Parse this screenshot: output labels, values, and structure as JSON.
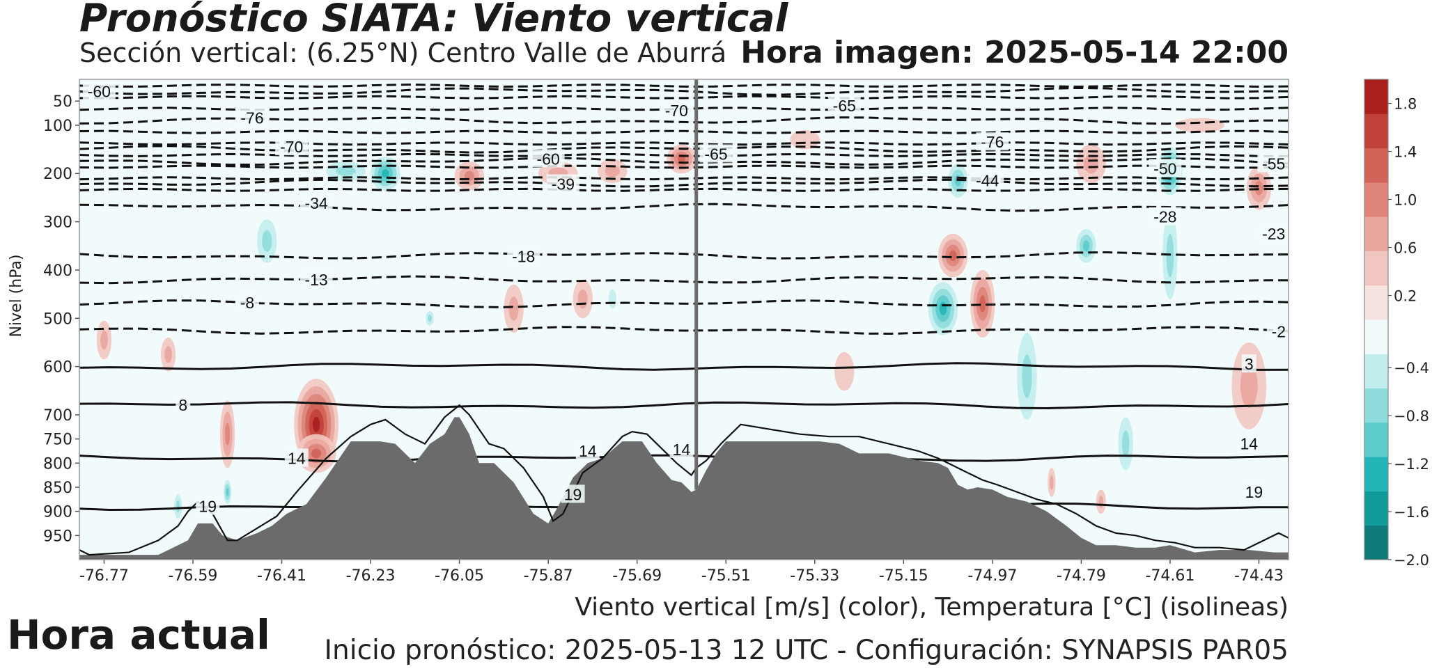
{
  "header": {
    "title": "Pronóstico SIATA: Viento vertical",
    "subtitle": "Sección vertical: (6.25°N) Centro Valle de Aburrá",
    "image_time": "Hora imagen: 2025-05-14 22:00"
  },
  "footer": {
    "xlabel": "Viento vertical [m/s] (color), Temperatura [°C] (isolineas)",
    "init": "Inicio pronóstico: 2025-05-13 12 UTC - Configuración: SYNAPSIS PAR05",
    "current_label": "Hora actual"
  },
  "chart_data": {
    "type": "heatmap",
    "ylabel": "Nivel (hPa)",
    "xlim": [
      -76.82,
      -74.37
    ],
    "ylim": [
      1000,
      5
    ],
    "x_ticks": [
      -76.77,
      -76.59,
      -76.41,
      -76.23,
      -76.05,
      -75.87,
      -75.69,
      -75.51,
      -75.33,
      -75.15,
      -74.97,
      -74.79,
      -74.61,
      -74.43
    ],
    "y_ticks": [
      50,
      100,
      200,
      300,
      400,
      500,
      600,
      700,
      750,
      800,
      850,
      900,
      950
    ],
    "current_longitude": -75.57,
    "colorbar": {
      "ticks": [
        1.8,
        1.4,
        1.0,
        0.6,
        0.2,
        -0.4,
        -0.8,
        -1.2,
        -1.6,
        -2.0
      ],
      "range": [
        -2.0,
        2.0
      ],
      "colors": [
        "#0e7b7b",
        "#109b9b",
        "#23b5b5",
        "#5ccbcb",
        "#8fdcdc",
        "#c2eded",
        "#f2fbfb",
        "#f7e3e0",
        "#f2c6c0",
        "#e9a69e",
        "#de847a",
        "#d16358",
        "#c0403a",
        "#aa1e1e"
      ]
    },
    "isotherms": [
      {
        "level": 30,
        "value": -60,
        "style": "dashed"
      },
      {
        "level": 90,
        "value": -76,
        "style": "dashed"
      },
      {
        "level": 150,
        "value": -70,
        "style": "dashed"
      },
      {
        "level": 175,
        "value": -60,
        "style": "dashed"
      },
      {
        "level": 220,
        "value": -39,
        "style": "dashed"
      },
      {
        "level": 270,
        "value": -34,
        "style": "dashed"
      },
      {
        "level": 370,
        "value": -18,
        "style": "dashed"
      },
      {
        "level": 420,
        "value": -13,
        "style": "dashed"
      },
      {
        "level": 470,
        "value": -8,
        "style": "dashed"
      },
      {
        "level": 525,
        "value": -2,
        "style": "dashed"
      },
      {
        "level": 600,
        "value": 3,
        "style": "solid"
      },
      {
        "level": 680,
        "value": 8,
        "style": "solid"
      },
      {
        "level": 790,
        "value": 14,
        "style": "solid"
      },
      {
        "level": 890,
        "value": 19,
        "style": "solid"
      }
    ],
    "isotherm_labels": [
      {
        "x": -76.78,
        "level": 30,
        "text": "-60"
      },
      {
        "x": -76.47,
        "level": 85,
        "text": "-76"
      },
      {
        "x": -76.39,
        "level": 145,
        "text": "-70"
      },
      {
        "x": -75.61,
        "level": 70,
        "text": "-70"
      },
      {
        "x": -75.87,
        "level": 170,
        "text": "-60"
      },
      {
        "x": -75.27,
        "level": 60,
        "text": "-65"
      },
      {
        "x": -75.53,
        "level": 160,
        "text": "-65"
      },
      {
        "x": -74.97,
        "level": 135,
        "text": "-76"
      },
      {
        "x": -74.62,
        "level": 190,
        "text": "-50"
      },
      {
        "x": -74.4,
        "level": 180,
        "text": "-55"
      },
      {
        "x": -75.84,
        "level": 222,
        "text": "-39"
      },
      {
        "x": -76.34,
        "level": 262,
        "text": "-34"
      },
      {
        "x": -74.98,
        "level": 215,
        "text": "-44"
      },
      {
        "x": -74.62,
        "level": 290,
        "text": "-28"
      },
      {
        "x": -74.4,
        "level": 325,
        "text": "-23"
      },
      {
        "x": -75.92,
        "level": 372,
        "text": "-18"
      },
      {
        "x": -76.34,
        "level": 420,
        "text": "-13"
      },
      {
        "x": -76.48,
        "level": 468,
        "text": "-8"
      },
      {
        "x": -74.39,
        "level": 528,
        "text": "-2"
      },
      {
        "x": -74.45,
        "level": 595,
        "text": "3"
      },
      {
        "x": -76.61,
        "level": 680,
        "text": "8"
      },
      {
        "x": -76.38,
        "level": 790,
        "text": "14"
      },
      {
        "x": -75.79,
        "level": 775,
        "text": "14"
      },
      {
        "x": -75.6,
        "level": 772,
        "text": "14"
      },
      {
        "x": -74.45,
        "level": 760,
        "text": "14"
      },
      {
        "x": -76.56,
        "level": 890,
        "text": "19"
      },
      {
        "x": -75.82,
        "level": 865,
        "text": "19"
      },
      {
        "x": -74.44,
        "level": 860,
        "text": "19"
      }
    ],
    "terrain": {
      "x": [
        -76.82,
        -76.74,
        -76.66,
        -76.6,
        -76.58,
        -76.55,
        -76.53,
        -76.5,
        -76.46,
        -76.43,
        -76.4,
        -76.36,
        -76.32,
        -76.27,
        -76.25,
        -76.21,
        -76.18,
        -76.14,
        -76.11,
        -76.08,
        -76.06,
        -76.05,
        -76.03,
        -76.01,
        -75.98,
        -75.94,
        -75.9,
        -75.87,
        -75.85,
        -75.82,
        -75.79,
        -75.76,
        -75.72,
        -75.7,
        -75.68,
        -75.65,
        -75.62,
        -75.6,
        -75.58,
        -75.57,
        -75.55,
        -75.53,
        -75.51,
        -75.48,
        -75.44,
        -75.4,
        -75.36,
        -75.32,
        -75.28,
        -75.24,
        -75.18,
        -75.12,
        -75.08,
        -75.06,
        -75.04,
        -75.02,
        -75.0,
        -74.97,
        -74.94,
        -74.9,
        -74.86,
        -74.82,
        -74.79,
        -74.76,
        -74.72,
        -74.68,
        -74.64,
        -74.61,
        -74.56,
        -74.51,
        -74.45,
        -74.4,
        -74.37
      ],
      "level": [
        990,
        990,
        990,
        960,
        925,
        925,
        950,
        960,
        945,
        930,
        905,
        885,
        830,
        755,
        755,
        755,
        760,
        800,
        760,
        740,
        705,
        705,
        740,
        800,
        800,
        840,
        905,
        925,
        890,
        830,
        800,
        790,
        755,
        755,
        755,
        800,
        835,
        840,
        860,
        855,
        815,
        780,
        755,
        755,
        755,
        755,
        755,
        755,
        760,
        780,
        780,
        795,
        800,
        810,
        845,
        855,
        850,
        855,
        870,
        880,
        900,
        930,
        955,
        970,
        970,
        975,
        975,
        970,
        985,
        980,
        980,
        985,
        985
      ]
    },
    "terrain_outline": {
      "x": [
        -76.82,
        -76.8,
        -76.72,
        -76.66,
        -76.62,
        -76.6,
        -76.58,
        -76.55,
        -76.52,
        -76.5,
        -76.46,
        -76.42,
        -76.38,
        -76.32,
        -76.27,
        -76.23,
        -76.2,
        -76.16,
        -76.12,
        -76.08,
        -76.05,
        -76.03,
        -75.99,
        -75.96,
        -75.92,
        -75.88,
        -75.86,
        -75.84,
        -75.8,
        -75.76,
        -75.72,
        -75.7,
        -75.67,
        -75.64,
        -75.61,
        -75.58,
        -75.57,
        -75.55,
        -75.52,
        -75.48,
        -75.42,
        -75.36,
        -75.3,
        -75.24,
        -75.18,
        -75.12,
        -75.08,
        -75.05,
        -75.02,
        -74.99,
        -74.96,
        -74.92,
        -74.88,
        -74.84,
        -74.8,
        -74.76,
        -74.72,
        -74.68,
        -74.64,
        -74.6,
        -74.56,
        -74.51,
        -74.46,
        -74.42,
        -74.39,
        -74.37
      ],
      "level": [
        980,
        990,
        985,
        960,
        930,
        900,
        880,
        905,
        960,
        960,
        935,
        910,
        860,
        790,
        745,
        720,
        710,
        740,
        760,
        705,
        680,
        700,
        760,
        770,
        810,
        870,
        920,
        905,
        820,
        790,
        745,
        735,
        740,
        770,
        800,
        825,
        810,
        795,
        760,
        720,
        730,
        740,
        745,
        745,
        760,
        775,
        790,
        805,
        820,
        835,
        845,
        860,
        875,
        885,
        905,
        930,
        945,
        950,
        960,
        965,
        975,
        975,
        980,
        960,
        945,
        955
      ]
    },
    "wind_blobs": [
      {
        "x": -76.34,
        "level": 720,
        "v": 1.9,
        "rx": 0.045,
        "ry": 95
      },
      {
        "x": -76.34,
        "level": 780,
        "v": 1.2,
        "rx": 0.04,
        "ry": 40
      },
      {
        "x": -76.52,
        "level": 740,
        "v": 0.8,
        "rx": 0.015,
        "ry": 70
      },
      {
        "x": -76.77,
        "level": 545,
        "v": 0.7,
        "rx": 0.015,
        "ry": 40
      },
      {
        "x": -76.64,
        "level": 575,
        "v": 0.7,
        "rx": 0.015,
        "ry": 35
      },
      {
        "x": -76.52,
        "level": 860,
        "v": -0.8,
        "rx": 0.008,
        "ry": 25
      },
      {
        "x": -76.62,
        "level": 890,
        "v": -0.5,
        "rx": 0.008,
        "ry": 25
      },
      {
        "x": -76.2,
        "level": 200,
        "v": -1.2,
        "rx": 0.03,
        "ry": 35
      },
      {
        "x": -76.28,
        "level": 195,
        "v": -0.7,
        "rx": 0.04,
        "ry": 20
      },
      {
        "x": -76.44,
        "level": 340,
        "v": -0.6,
        "rx": 0.02,
        "ry": 45
      },
      {
        "x": -76.03,
        "level": 205,
        "v": 0.8,
        "rx": 0.03,
        "ry": 30
      },
      {
        "x": -75.85,
        "level": 200,
        "v": 0.5,
        "rx": 0.04,
        "ry": 25
      },
      {
        "x": -75.74,
        "level": 195,
        "v": 0.5,
        "rx": 0.03,
        "ry": 25
      },
      {
        "x": -75.6,
        "level": 170,
        "v": 1.1,
        "rx": 0.03,
        "ry": 30
      },
      {
        "x": -75.94,
        "level": 480,
        "v": 0.6,
        "rx": 0.02,
        "ry": 50
      },
      {
        "x": -75.8,
        "level": 460,
        "v": 0.6,
        "rx": 0.02,
        "ry": 40
      },
      {
        "x": -76.11,
        "level": 500,
        "v": -0.5,
        "rx": 0.008,
        "ry": 15
      },
      {
        "x": -75.05,
        "level": 370,
        "v": 1.2,
        "rx": 0.03,
        "ry": 45
      },
      {
        "x": -74.99,
        "level": 470,
        "v": 1.1,
        "rx": 0.025,
        "ry": 70
      },
      {
        "x": -75.07,
        "level": 480,
        "v": -1.2,
        "rx": 0.03,
        "ry": 55
      },
      {
        "x": -75.04,
        "level": 215,
        "v": -0.9,
        "rx": 0.02,
        "ry": 35
      },
      {
        "x": -74.61,
        "level": 195,
        "v": -1.4,
        "rx": 0.025,
        "ry": 50
      },
      {
        "x": -74.61,
        "level": 370,
        "v": -0.6,
        "rx": 0.015,
        "ry": 90
      },
      {
        "x": -74.78,
        "level": 350,
        "v": -0.8,
        "rx": 0.02,
        "ry": 35
      },
      {
        "x": -74.77,
        "level": 180,
        "v": 0.6,
        "rx": 0.03,
        "ry": 40
      },
      {
        "x": -74.43,
        "level": 230,
        "v": 0.8,
        "rx": 0.025,
        "ry": 45
      },
      {
        "x": -74.45,
        "level": 640,
        "v": 0.5,
        "rx": 0.035,
        "ry": 90
      },
      {
        "x": -74.9,
        "level": 620,
        "v": -0.6,
        "rx": 0.02,
        "ry": 90
      },
      {
        "x": -74.7,
        "level": 760,
        "v": -0.6,
        "rx": 0.015,
        "ry": 55
      },
      {
        "x": -75.27,
        "level": 610,
        "v": 0.4,
        "rx": 0.02,
        "ry": 40
      },
      {
        "x": -74.85,
        "level": 840,
        "v": 0.5,
        "rx": 0.008,
        "ry": 30
      },
      {
        "x": -74.75,
        "level": 880,
        "v": 0.5,
        "rx": 0.01,
        "ry": 25
      },
      {
        "x": -75.74,
        "level": 460,
        "v": -0.4,
        "rx": 0.008,
        "ry": 20
      },
      {
        "x": -75.35,
        "level": 130,
        "v": 0.4,
        "rx": 0.03,
        "ry": 20
      },
      {
        "x": -74.55,
        "level": 100,
        "v": 0.3,
        "rx": 0.05,
        "ry": 15
      }
    ]
  }
}
